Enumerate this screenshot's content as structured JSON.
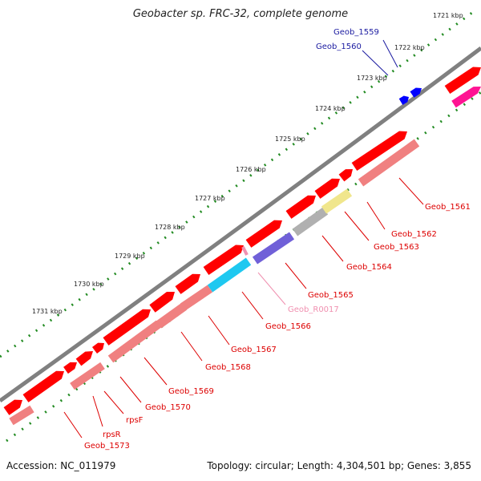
{
  "header": {
    "title": "Geobacter sp. FRC-32, complete genome"
  },
  "footer": {
    "accession": "Accession: NC_011979",
    "summary": "Topology: circular; Length: 4,304,501 bp; Genes: 3,855"
  },
  "ruler": {
    "ticks": [
      "1721 kbp",
      "1722 kbp",
      "1723 kbp",
      "1724 kbp",
      "1725 kbp",
      "1726 kbp",
      "1727 kbp",
      "1728 kbp",
      "1729 kbp",
      "1730 kbp",
      "1731 kbp"
    ]
  },
  "colors": {
    "backbone": "#808080",
    "cds": "#ff0000",
    "cds_light": "#f08080",
    "blue": "#0000ff",
    "navy_label": "#1a1aa0",
    "pink_label": "#f090b0",
    "magenta": "#ff1493",
    "tick_green": "#228b22",
    "cyan": "#1ec8f0",
    "purple": "#7060d8",
    "khaki": "#f0e68c",
    "gray_feature": "#b0b0b0"
  },
  "genes": [
    {
      "name": "Geob_1559",
      "color": "#1a1aa0"
    },
    {
      "name": "Geob_1560",
      "color": "#1a1aa0"
    },
    {
      "name": "Geob_1561",
      "color": "#dd0000"
    },
    {
      "name": "Geob_1562",
      "color": "#dd0000"
    },
    {
      "name": "Geob_1563",
      "color": "#dd0000"
    },
    {
      "name": "Geob_1564",
      "color": "#dd0000"
    },
    {
      "name": "Geob_1565",
      "color": "#dd0000"
    },
    {
      "name": "Geob_R0017",
      "color": "#f090b0"
    },
    {
      "name": "Geob_1566",
      "color": "#dd0000"
    },
    {
      "name": "Geob_1567",
      "color": "#dd0000"
    },
    {
      "name": "Geob_1568",
      "color": "#dd0000"
    },
    {
      "name": "Geob_1569",
      "color": "#dd0000"
    },
    {
      "name": "Geob_1570",
      "color": "#dd0000"
    },
    {
      "name": "rpsF",
      "color": "#dd0000"
    },
    {
      "name": "rpsR",
      "color": "#dd0000"
    },
    {
      "name": "Geob_1573",
      "color": "#dd0000"
    }
  ]
}
